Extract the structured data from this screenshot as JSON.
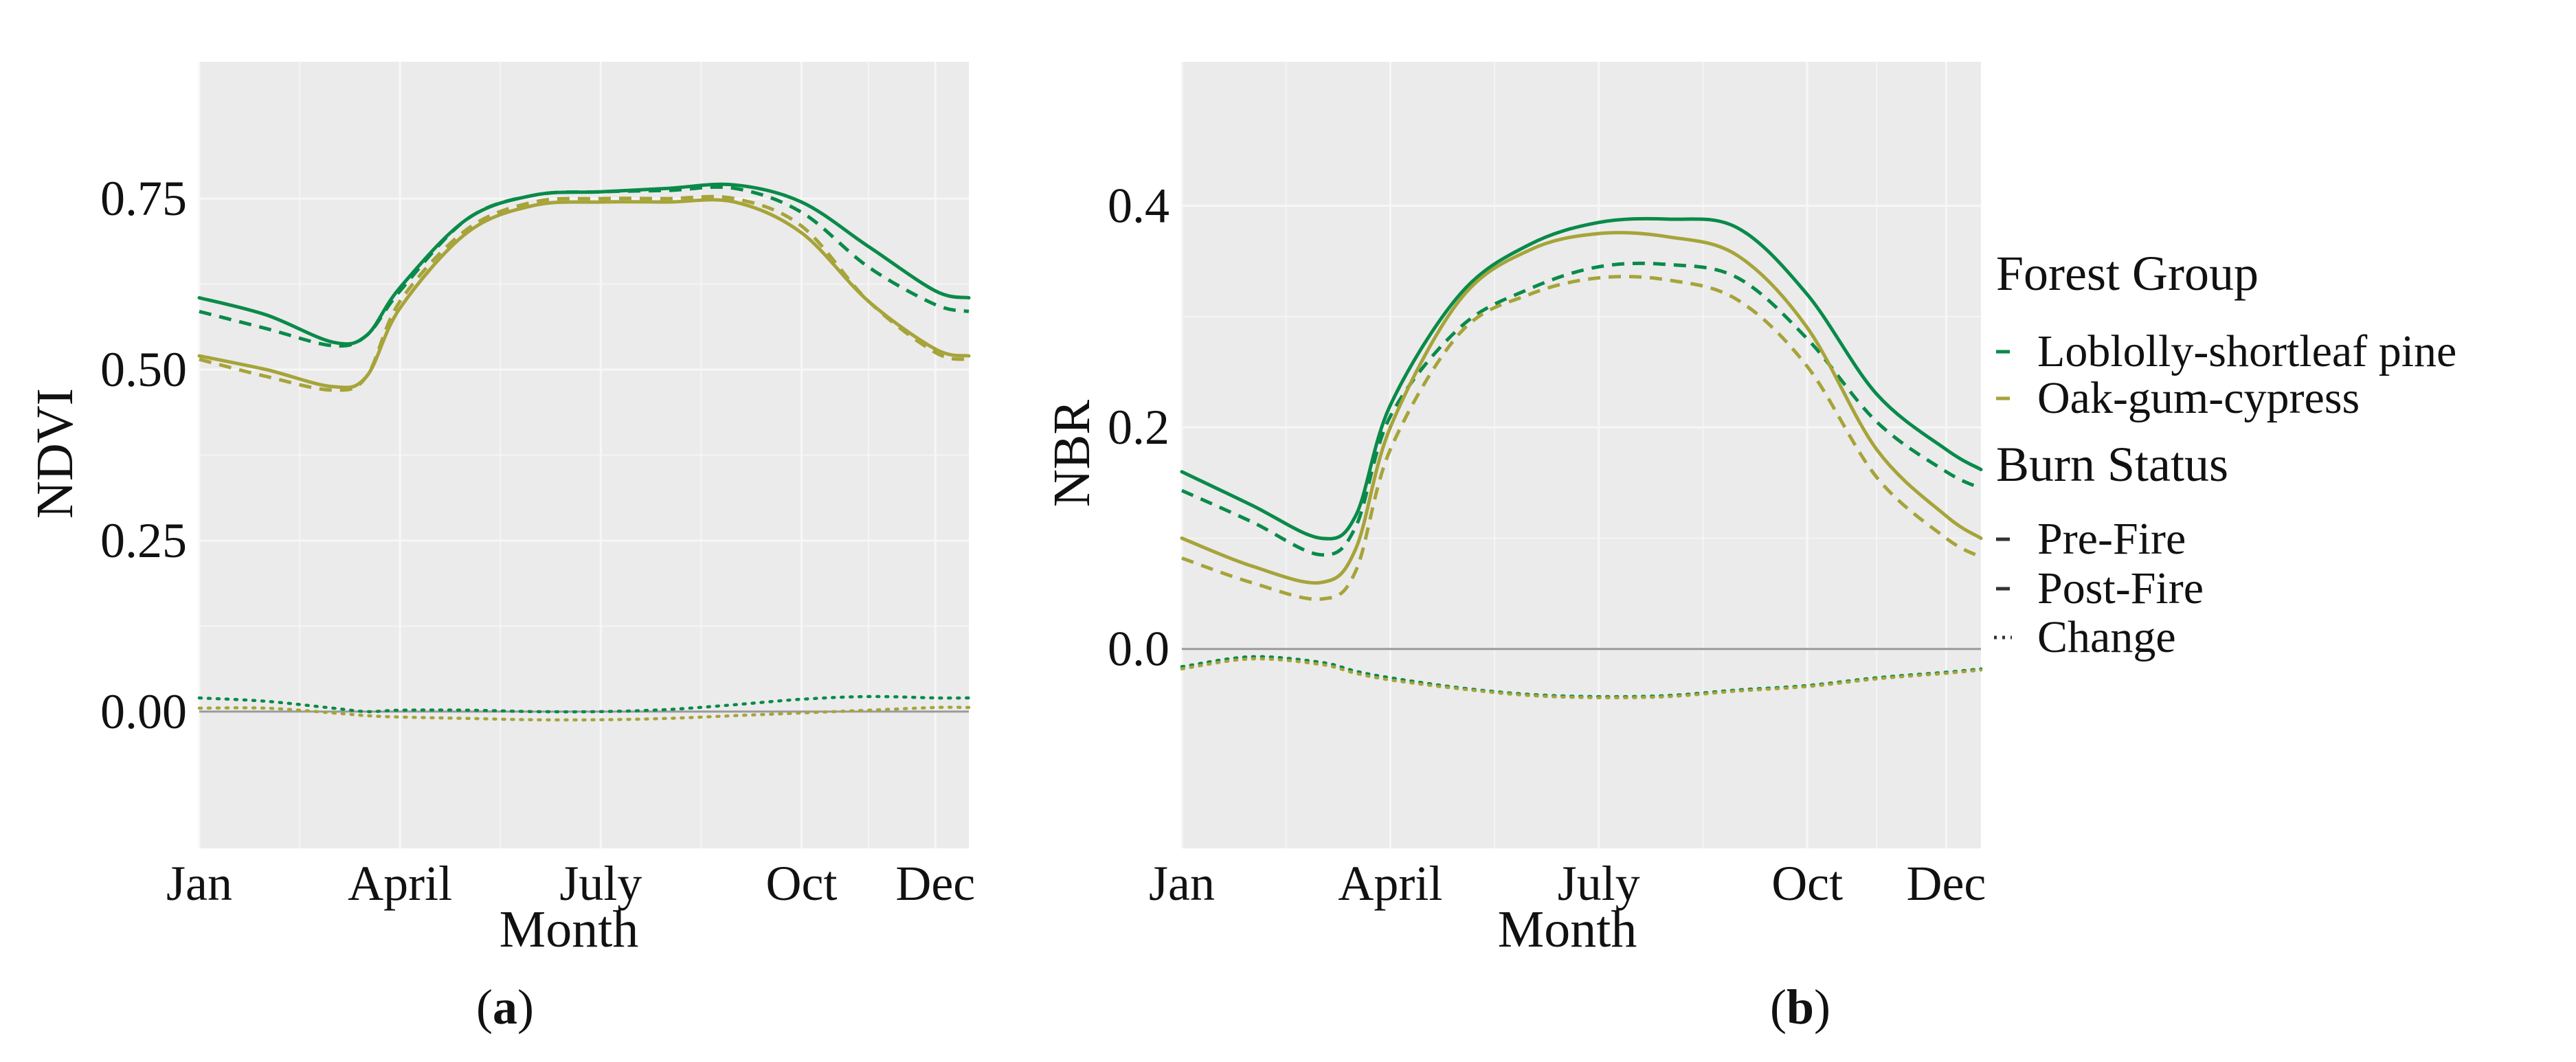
{
  "colors": {
    "loblolly": "#0a8a4a",
    "oak": "#a6a43a",
    "panel_bg": "#ebebeb",
    "grid": "#f7f7f7",
    "zero_line": "#9a9a9a"
  },
  "legend": {
    "group_title": "Forest Group",
    "groups": [
      "Loblolly-shortleaf pine",
      "Oak-gum-cypress"
    ],
    "status_title": "Burn Status",
    "statuses": [
      "Pre-Fire",
      "Post-Fire",
      "Change"
    ]
  },
  "chart_data": [
    {
      "type": "line",
      "caption_letter": "a",
      "xlabel": "Month",
      "ylabel": "NDVI",
      "xlim": [
        1,
        12.5
      ],
      "ylim": [
        -0.2,
        0.95
      ],
      "x_ticks": [
        1,
        4,
        7,
        10,
        12
      ],
      "x_tick_labels": [
        "Jan",
        "April",
        "July",
        "Oct",
        "Dec"
      ],
      "y_ticks": [
        0.0,
        0.25,
        0.5,
        0.75
      ],
      "y_tick_labels": [
        "0.00",
        "0.25",
        "0.50",
        "0.75"
      ],
      "zero_line": 0,
      "x": [
        1,
        2,
        3,
        3.5,
        4,
        5,
        6,
        7,
        8,
        9,
        10,
        11,
        12,
        12.5
      ],
      "series": [
        {
          "name": "Loblolly-shortleaf pine Pre-Fire",
          "group": "Loblolly-shortleaf pine",
          "status": "Pre-Fire",
          "values": [
            0.605,
            0.58,
            0.54,
            0.55,
            0.62,
            0.72,
            0.755,
            0.76,
            0.765,
            0.77,
            0.745,
            0.68,
            0.615,
            0.605
          ]
        },
        {
          "name": "Loblolly-shortleaf pine Post-Fire",
          "group": "Loblolly-shortleaf pine",
          "status": "Post-Fire",
          "values": [
            0.585,
            0.56,
            0.535,
            0.55,
            0.615,
            0.72,
            0.755,
            0.76,
            0.762,
            0.765,
            0.73,
            0.65,
            0.595,
            0.585
          ]
        },
        {
          "name": "Oak-gum-cypress Pre-Fire",
          "group": "Oak-gum-cypress",
          "status": "Pre-Fire",
          "values": [
            0.52,
            0.5,
            0.475,
            0.49,
            0.59,
            0.7,
            0.74,
            0.745,
            0.745,
            0.745,
            0.7,
            0.6,
            0.53,
            0.52
          ]
        },
        {
          "name": "Oak-gum-cypress Post-Fire",
          "group": "Oak-gum-cypress",
          "status": "Post-Fire",
          "values": [
            0.515,
            0.49,
            0.47,
            0.49,
            0.6,
            0.705,
            0.745,
            0.75,
            0.75,
            0.75,
            0.71,
            0.6,
            0.525,
            0.515
          ]
        },
        {
          "name": "Loblolly-shortleaf pine Change",
          "group": "Loblolly-shortleaf pine",
          "status": "Change",
          "values": [
            0.02,
            0.015,
            0.005,
            0.0,
            0.002,
            0.002,
            0.0,
            0.0,
            0.003,
            0.01,
            0.018,
            0.022,
            0.02,
            0.02
          ]
        },
        {
          "name": "Oak-gum-cypress Change",
          "group": "Oak-gum-cypress",
          "status": "Change",
          "values": [
            0.005,
            0.005,
            -0.002,
            -0.006,
            -0.008,
            -0.01,
            -0.012,
            -0.012,
            -0.01,
            -0.006,
            -0.002,
            0.002,
            0.006,
            0.006
          ]
        }
      ]
    },
    {
      "type": "line",
      "caption_letter": "b",
      "xlabel": "Month",
      "ylabel": "NBR",
      "xlim": [
        1,
        12.5
      ],
      "ylim": [
        -0.18,
        0.53
      ],
      "x_ticks": [
        1,
        4,
        7,
        10,
        12
      ],
      "x_tick_labels": [
        "Jan",
        "April",
        "July",
        "Oct",
        "Dec"
      ],
      "y_ticks": [
        0.0,
        0.2,
        0.4
      ],
      "y_tick_labels": [
        "0.0",
        "0.2",
        "0.4"
      ],
      "zero_line": 0,
      "x": [
        1,
        2,
        3,
        3.5,
        4,
        5,
        6,
        7,
        8,
        9,
        10,
        11,
        12,
        12.5
      ],
      "series": [
        {
          "name": "Loblolly-shortleaf pine Pre-Fire",
          "group": "Loblolly-shortleaf pine",
          "status": "Pre-Fire",
          "values": [
            0.16,
            0.13,
            0.1,
            0.12,
            0.22,
            0.32,
            0.365,
            0.385,
            0.388,
            0.38,
            0.32,
            0.23,
            0.18,
            0.162
          ]
        },
        {
          "name": "Loblolly-shortleaf pine Post-Fire",
          "group": "Loblolly-shortleaf pine",
          "status": "Post-Fire",
          "values": [
            0.143,
            0.115,
            0.085,
            0.11,
            0.21,
            0.29,
            0.325,
            0.345,
            0.347,
            0.335,
            0.28,
            0.205,
            0.16,
            0.145
          ]
        },
        {
          "name": "Oak-gum-cypress Pre-Fire",
          "group": "Oak-gum-cypress",
          "status": "Pre-Fire",
          "values": [
            0.1,
            0.075,
            0.06,
            0.09,
            0.2,
            0.315,
            0.36,
            0.375,
            0.372,
            0.355,
            0.29,
            0.18,
            0.12,
            0.1
          ]
        },
        {
          "name": "Oak-gum-cypress Post-Fire",
          "group": "Oak-gum-cypress",
          "status": "Post-Fire",
          "values": [
            0.082,
            0.06,
            0.045,
            0.07,
            0.18,
            0.285,
            0.32,
            0.335,
            0.333,
            0.315,
            0.255,
            0.155,
            0.1,
            0.083
          ]
        },
        {
          "name": "Loblolly-shortleaf pine Change",
          "group": "Loblolly-shortleaf pine",
          "status": "Change",
          "values": [
            -0.016,
            -0.007,
            -0.012,
            -0.02,
            -0.026,
            -0.035,
            -0.041,
            -0.043,
            -0.042,
            -0.037,
            -0.033,
            -0.026,
            -0.021,
            -0.018
          ]
        },
        {
          "name": "Oak-gum-cypress Change",
          "group": "Oak-gum-cypress",
          "status": "Change",
          "values": [
            -0.018,
            -0.009,
            -0.014,
            -0.022,
            -0.028,
            -0.036,
            -0.042,
            -0.044,
            -0.043,
            -0.038,
            -0.034,
            -0.027,
            -0.022,
            -0.019
          ]
        }
      ]
    }
  ]
}
